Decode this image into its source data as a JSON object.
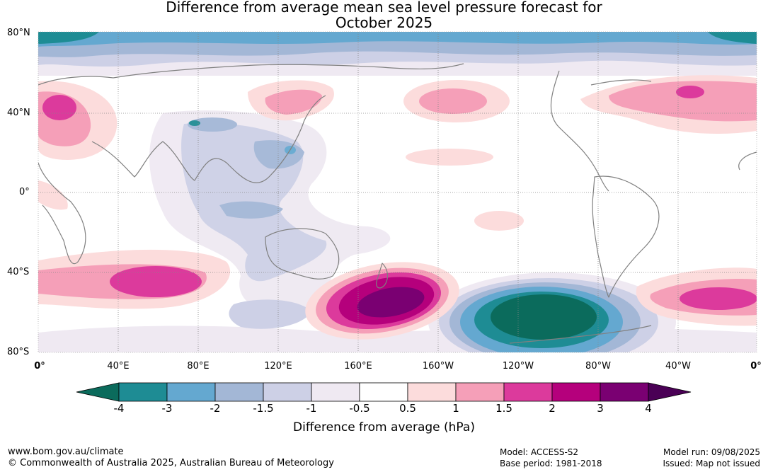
{
  "title": {
    "line1": "Difference from average mean sea level pressure forecast for",
    "line2": "October 2025"
  },
  "map": {
    "latitude_labels": [
      "80°N",
      "40°N",
      "0°",
      "40°S",
      "80°S"
    ],
    "longitude_labels": [
      "0°",
      "40°E",
      "80°E",
      "120°E",
      "160°E",
      "160°W",
      "120°W",
      "80°W",
      "40°W",
      "0°"
    ],
    "colors": {
      "land_outline": "#808080",
      "gridline": "#888888",
      "ocean": "#ffffff"
    }
  },
  "colorbar": {
    "tick_labels": [
      "-4",
      "-3",
      "-2",
      "-1.5",
      "-1",
      "-0.5",
      "0.5",
      "1",
      "1.5",
      "2",
      "3",
      "4"
    ],
    "bins": [
      {
        "range": "< -4",
        "color": "#0b6b5c"
      },
      {
        "range": "-4 to -3",
        "color": "#1e8c94"
      },
      {
        "range": "-3 to -2",
        "color": "#64a8d0"
      },
      {
        "range": "-2 to -1.5",
        "color": "#a3b7d6"
      },
      {
        "range": "-1.5 to -1",
        "color": "#cdd0e6"
      },
      {
        "range": "-1 to -0.5",
        "color": "#efe9f2"
      },
      {
        "range": "-0.5 to 0.5",
        "color": "#ffffff"
      },
      {
        "range": "0.5 to 1",
        "color": "#fcdcdc"
      },
      {
        "range": "1 to 1.5",
        "color": "#f59fb8"
      },
      {
        "range": "1.5 to 2",
        "color": "#dc3a9c"
      },
      {
        "range": "2 to 3",
        "color": "#b5007c"
      },
      {
        "range": "3 to 4",
        "color": "#7a0072"
      },
      {
        "range": "> 4",
        "color": "#4a0055"
      }
    ],
    "title": "Difference from average (hPa)"
  },
  "footer": {
    "website": "www.bom.gov.au/climate",
    "copyright": "© Commonwealth of Australia 2025, Australian Bureau of Meteorology",
    "model": "Model: ACCESS-S2",
    "base_period": "Base period: 1981-2018",
    "model_run": "Model run: 09/08/2025",
    "issued": "Issued: Map not issued"
  }
}
